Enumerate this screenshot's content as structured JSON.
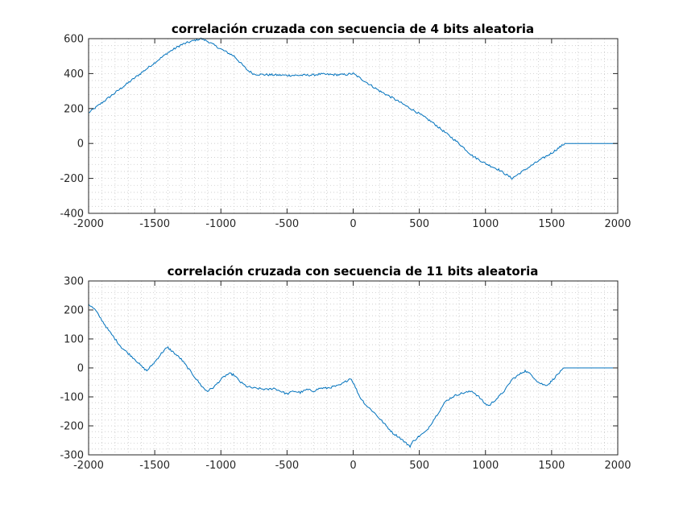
{
  "style": {
    "line_color": "#0072bd",
    "axis_color": "#262626",
    "grid_color": "#c8c8c8",
    "background": "#ffffff"
  },
  "chart_data": [
    {
      "type": "line",
      "title": "correlación cruzada con secuencia de 4 bits aleatoria",
      "xlabel": "",
      "ylabel": "",
      "xlim": [
        -2000,
        2000
      ],
      "ylim": [
        -400,
        600
      ],
      "xticks": [
        -2000,
        -1500,
        -1000,
        -500,
        0,
        500,
        1000,
        1500,
        2000
      ],
      "xtick_labels": [
        "-2000",
        "-1500",
        "-1000",
        "-500",
        "0",
        "500",
        "1000",
        "1500",
        "2000"
      ],
      "yticks": [
        -400,
        -200,
        0,
        200,
        400,
        600
      ],
      "ytick_labels": [
        "-400",
        "-200",
        "0",
        "200",
        "400",
        "600"
      ],
      "grid": "minor-dotted",
      "series": [
        {
          "x": [
            -2000,
            -1800,
            -1600,
            -1400,
            -1300,
            -1200,
            -1150,
            -1100,
            -1000,
            -900,
            -800,
            -750,
            -700,
            -600,
            -500,
            -400,
            -300,
            -250,
            -200,
            -100,
            -50,
            0,
            100,
            200,
            300,
            400,
            500,
            600,
            700,
            800,
            900,
            1000,
            1100,
            1200,
            1300,
            1400,
            1500,
            1600,
            1800,
            2000
          ],
          "y": [
            175,
            290,
            405,
            520,
            565,
            590,
            600,
            585,
            540,
            500,
            420,
            397,
            395,
            392,
            390,
            390,
            392,
            397,
            395,
            393,
            395,
            400,
            350,
            300,
            260,
            215,
            170,
            120,
            60,
            0,
            -70,
            -115,
            -150,
            -200,
            -150,
            -100,
            -55,
            0,
            0,
            0
          ]
        }
      ]
    },
    {
      "type": "line",
      "title": "correlación cruzada con secuencia de 11 bits aleatoria",
      "xlabel": "",
      "ylabel": "",
      "xlim": [
        -2000,
        2000
      ],
      "ylim": [
        -300,
        300
      ],
      "xticks": [
        -2000,
        -1500,
        -1000,
        -500,
        0,
        500,
        1000,
        1500,
        2000
      ],
      "xtick_labels": [
        "-2000",
        "-1500",
        "-1000",
        "-500",
        "0",
        "500",
        "1000",
        "1500",
        "2000"
      ],
      "yticks": [
        -300,
        -200,
        -100,
        0,
        100,
        200,
        300
      ],
      "ytick_labels": [
        "-300",
        "-200",
        "-100",
        "0",
        "100",
        "200",
        "300"
      ],
      "grid": "minor-dotted",
      "series": [
        {
          "x": [
            -2000,
            -1950,
            -1900,
            -1850,
            -1800,
            -1750,
            -1700,
            -1650,
            -1600,
            -1560,
            -1500,
            -1450,
            -1420,
            -1400,
            -1350,
            -1300,
            -1250,
            -1200,
            -1150,
            -1120,
            -1100,
            -1050,
            -1000,
            -960,
            -930,
            -900,
            -850,
            -800,
            -750,
            -700,
            -650,
            -600,
            -550,
            -500,
            -450,
            -400,
            -350,
            -300,
            -250,
            -200,
            -150,
            -100,
            -50,
            -20,
            0,
            50,
            100,
            150,
            200,
            250,
            300,
            350,
            400,
            430,
            450,
            500,
            550,
            600,
            650,
            700,
            750,
            800,
            850,
            900,
            950,
            1000,
            1030,
            1050,
            1100,
            1150,
            1200,
            1250,
            1280,
            1300,
            1350,
            1400,
            1450,
            1480,
            1500,
            1550,
            1600,
            1800,
            2000
          ],
          "y": [
            220,
            200,
            165,
            130,
            100,
            70,
            50,
            30,
            5,
            -10,
            20,
            50,
            65,
            70,
            50,
            30,
            0,
            -30,
            -60,
            -75,
            -80,
            -65,
            -40,
            -25,
            -20,
            -25,
            -50,
            -65,
            -70,
            -72,
            -75,
            -70,
            -80,
            -90,
            -80,
            -85,
            -75,
            -80,
            -70,
            -70,
            -65,
            -60,
            -45,
            -35,
            -50,
            -100,
            -130,
            -150,
            -175,
            -200,
            -225,
            -240,
            -260,
            -270,
            -255,
            -235,
            -220,
            -185,
            -150,
            -115,
            -100,
            -90,
            -85,
            -80,
            -100,
            -125,
            -130,
            -120,
            -100,
            -75,
            -40,
            -25,
            -15,
            -10,
            -25,
            -50,
            -60,
            -55,
            -45,
            -20,
            0,
            0,
            0
          ]
        }
      ]
    }
  ]
}
